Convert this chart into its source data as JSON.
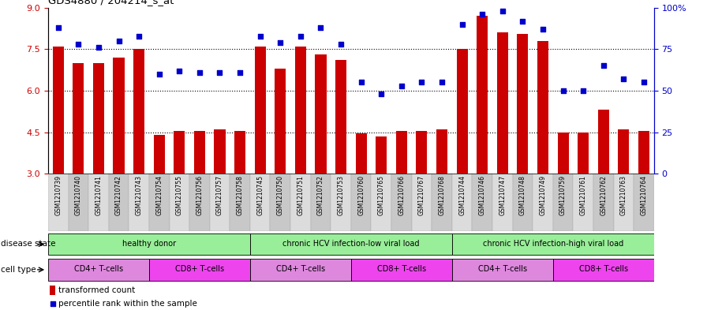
{
  "title": "GDS4880 / 204214_s_at",
  "samples": [
    "GSM1210739",
    "GSM1210740",
    "GSM1210741",
    "GSM1210742",
    "GSM1210743",
    "GSM1210754",
    "GSM1210755",
    "GSM1210756",
    "GSM1210757",
    "GSM1210758",
    "GSM1210745",
    "GSM1210750",
    "GSM1210751",
    "GSM1210752",
    "GSM1210753",
    "GSM1210760",
    "GSM1210765",
    "GSM1210766",
    "GSM1210767",
    "GSM1210768",
    "GSM1210744",
    "GSM1210746",
    "GSM1210747",
    "GSM1210748",
    "GSM1210749",
    "GSM1210759",
    "GSM1210761",
    "GSM1210762",
    "GSM1210763",
    "GSM1210764"
  ],
  "bar_values": [
    7.6,
    7.0,
    7.0,
    7.2,
    7.5,
    4.4,
    4.55,
    4.55,
    4.6,
    4.55,
    7.6,
    6.8,
    7.6,
    7.3,
    7.1,
    4.45,
    4.35,
    4.55,
    4.55,
    4.6,
    7.5,
    8.7,
    8.1,
    8.05,
    7.8,
    4.5,
    4.5,
    5.3,
    4.6,
    4.55
  ],
  "percentile_values": [
    88,
    78,
    76,
    80,
    83,
    60,
    62,
    61,
    61,
    61,
    83,
    79,
    83,
    88,
    78,
    55,
    48,
    53,
    55,
    55,
    90,
    96,
    98,
    92,
    87,
    50,
    50,
    65,
    57,
    55
  ],
  "bar_color": "#CC0000",
  "dot_color": "#0000CC",
  "y_min": 3,
  "y_max": 9,
  "p_min": 0,
  "p_max": 100,
  "yticks_left": [
    3,
    4.5,
    6.0,
    7.5,
    9
  ],
  "yticks_right": [
    0,
    25,
    50,
    75,
    100
  ],
  "ytick_labels_right": [
    "0",
    "25",
    "50",
    "75",
    "100%"
  ],
  "hlines": [
    4.5,
    6.0,
    7.5
  ],
  "disease_groups": [
    {
      "label": "healthy donor",
      "start": 0,
      "end": 9
    },
    {
      "label": "chronic HCV infection-low viral load",
      "start": 10,
      "end": 19
    },
    {
      "label": "chronic HCV infection-high viral load",
      "start": 20,
      "end": 29
    }
  ],
  "cell_groups": [
    {
      "label": "CD4+ T-cells",
      "start": 0,
      "end": 4
    },
    {
      "label": "CD8+ T-cells",
      "start": 5,
      "end": 9
    },
    {
      "label": "CD4+ T-cells",
      "start": 10,
      "end": 14
    },
    {
      "label": "CD8+ T-cells",
      "start": 15,
      "end": 19
    },
    {
      "label": "CD4+ T-cells",
      "start": 20,
      "end": 24
    },
    {
      "label": "CD8+ T-cells",
      "start": 25,
      "end": 29
    }
  ],
  "disease_color": "#99EE99",
  "cd4_color": "#DD88DD",
  "cd8_color": "#EE44EE",
  "left_axis_color": "#CC0000",
  "right_axis_color": "#0000CC",
  "bar_width": 0.55,
  "legend_bar_label": "transformed count",
  "legend_dot_label": "percentile rank within the sample"
}
